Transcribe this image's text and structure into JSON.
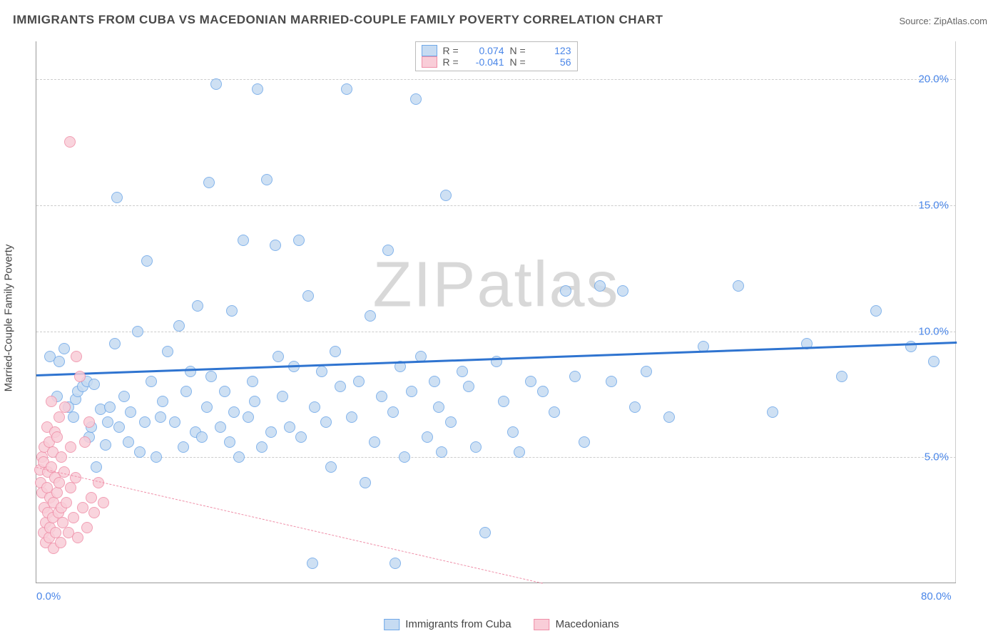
{
  "title": "IMMIGRANTS FROM CUBA VS MACEDONIAN MARRIED-COUPLE FAMILY POVERTY CORRELATION CHART",
  "source": "Source: ZipAtlas.com",
  "watermark_a": "ZIP",
  "watermark_b": "atlas",
  "y_axis_label": "Married-Couple Family Poverty",
  "chart": {
    "type": "scatter",
    "xlim": [
      0,
      80
    ],
    "ylim": [
      0,
      21.5
    ],
    "x_ticks": [
      {
        "v": 0,
        "label": "0.0%"
      },
      {
        "v": 80,
        "label": "80.0%"
      }
    ],
    "y_ticks": [
      {
        "v": 5,
        "label": "5.0%"
      },
      {
        "v": 10,
        "label": "10.0%"
      },
      {
        "v": 15,
        "label": "15.0%"
      },
      {
        "v": 20,
        "label": "20.0%"
      }
    ],
    "grid_color": "#cccccc",
    "background_color": "#ffffff",
    "marker_radius": 8,
    "series": [
      {
        "name": "Immigrants from Cuba",
        "fill": "#c6dbf2",
        "stroke": "#6fa8e8",
        "trend_color": "#2f74d0",
        "trend_dashed": false,
        "trend": {
          "x1": 0,
          "y1": 8.3,
          "x2": 80,
          "y2": 9.6
        },
        "R": "0.074",
        "N": "123",
        "points": [
          [
            1.2,
            9.0
          ],
          [
            1.8,
            7.4
          ],
          [
            2.0,
            8.8
          ],
          [
            2.4,
            9.3
          ],
          [
            2.8,
            7.0
          ],
          [
            3.2,
            6.6
          ],
          [
            3.4,
            7.3
          ],
          [
            3.6,
            7.6
          ],
          [
            4.0,
            7.8
          ],
          [
            4.4,
            8.0
          ],
          [
            4.6,
            5.8
          ],
          [
            4.8,
            6.2
          ],
          [
            5.0,
            7.9
          ],
          [
            5.2,
            4.6
          ],
          [
            5.6,
            6.9
          ],
          [
            6.0,
            5.5
          ],
          [
            6.2,
            6.4
          ],
          [
            6.4,
            7.0
          ],
          [
            6.8,
            9.5
          ],
          [
            7.0,
            15.3
          ],
          [
            7.2,
            6.2
          ],
          [
            7.6,
            7.4
          ],
          [
            8.0,
            5.6
          ],
          [
            8.2,
            6.8
          ],
          [
            8.8,
            10.0
          ],
          [
            9.0,
            5.2
          ],
          [
            9.4,
            6.4
          ],
          [
            9.6,
            12.8
          ],
          [
            10.0,
            8.0
          ],
          [
            10.4,
            5.0
          ],
          [
            10.8,
            6.6
          ],
          [
            11.0,
            7.2
          ],
          [
            11.4,
            9.2
          ],
          [
            12.0,
            6.4
          ],
          [
            12.4,
            10.2
          ],
          [
            12.8,
            5.4
          ],
          [
            13.0,
            7.6
          ],
          [
            13.4,
            8.4
          ],
          [
            13.8,
            6.0
          ],
          [
            14.0,
            11.0
          ],
          [
            14.4,
            5.8
          ],
          [
            14.8,
            7.0
          ],
          [
            15.0,
            15.9
          ],
          [
            15.2,
            8.2
          ],
          [
            15.6,
            19.8
          ],
          [
            16.0,
            6.2
          ],
          [
            16.4,
            7.6
          ],
          [
            16.8,
            5.6
          ],
          [
            17.0,
            10.8
          ],
          [
            17.2,
            6.8
          ],
          [
            17.6,
            5.0
          ],
          [
            18.0,
            13.6
          ],
          [
            18.4,
            6.6
          ],
          [
            18.8,
            8.0
          ],
          [
            19.0,
            7.2
          ],
          [
            19.2,
            19.6
          ],
          [
            19.6,
            5.4
          ],
          [
            20.0,
            16.0
          ],
          [
            20.4,
            6.0
          ],
          [
            20.8,
            13.4
          ],
          [
            21.0,
            9.0
          ],
          [
            21.4,
            7.4
          ],
          [
            22.0,
            6.2
          ],
          [
            22.4,
            8.6
          ],
          [
            22.8,
            13.6
          ],
          [
            23.0,
            5.8
          ],
          [
            23.6,
            11.4
          ],
          [
            24.0,
            0.8
          ],
          [
            24.2,
            7.0
          ],
          [
            24.8,
            8.4
          ],
          [
            25.2,
            6.4
          ],
          [
            25.6,
            4.6
          ],
          [
            26.0,
            9.2
          ],
          [
            26.4,
            7.8
          ],
          [
            27.0,
            19.6
          ],
          [
            27.4,
            6.6
          ],
          [
            28.0,
            8.0
          ],
          [
            28.6,
            4.0
          ],
          [
            29.0,
            10.6
          ],
          [
            29.4,
            5.6
          ],
          [
            30.0,
            7.4
          ],
          [
            30.6,
            13.2
          ],
          [
            31.0,
            6.8
          ],
          [
            31.2,
            0.8
          ],
          [
            31.6,
            8.6
          ],
          [
            32.0,
            5.0
          ],
          [
            32.6,
            7.6
          ],
          [
            33.0,
            19.2
          ],
          [
            33.4,
            9.0
          ],
          [
            34.0,
            5.8
          ],
          [
            34.6,
            8.0
          ],
          [
            35.0,
            7.0
          ],
          [
            35.2,
            5.2
          ],
          [
            35.6,
            15.4
          ],
          [
            36.0,
            6.4
          ],
          [
            37.0,
            8.4
          ],
          [
            37.6,
            7.8
          ],
          [
            38.2,
            5.4
          ],
          [
            39.0,
            2.0
          ],
          [
            40.0,
            8.8
          ],
          [
            40.6,
            7.2
          ],
          [
            41.4,
            6.0
          ],
          [
            42.0,
            5.2
          ],
          [
            43.0,
            8.0
          ],
          [
            44.0,
            7.6
          ],
          [
            45.0,
            6.8
          ],
          [
            46.0,
            11.6
          ],
          [
            46.8,
            8.2
          ],
          [
            47.6,
            5.6
          ],
          [
            49.0,
            11.8
          ],
          [
            50.0,
            8.0
          ],
          [
            51.0,
            11.6
          ],
          [
            52.0,
            7.0
          ],
          [
            53.0,
            8.4
          ],
          [
            55.0,
            6.6
          ],
          [
            58.0,
            9.4
          ],
          [
            61.0,
            11.8
          ],
          [
            64.0,
            6.8
          ],
          [
            67.0,
            9.5
          ],
          [
            70.0,
            8.2
          ],
          [
            73.0,
            10.8
          ],
          [
            76.0,
            9.4
          ],
          [
            78.0,
            8.8
          ]
        ]
      },
      {
        "name": "Macedonians",
        "fill": "#f9cdd8",
        "stroke": "#ef8fa8",
        "trend_color": "#ef8fa8",
        "trend_dashed": true,
        "trend": {
          "x1": 0,
          "y1": 4.6,
          "x2": 44,
          "y2": 0
        },
        "R": "-0.041",
        "N": "56",
        "points": [
          [
            0.3,
            4.5
          ],
          [
            0.4,
            4.0
          ],
          [
            0.5,
            3.6
          ],
          [
            0.5,
            5.0
          ],
          [
            0.6,
            2.0
          ],
          [
            0.6,
            4.8
          ],
          [
            0.7,
            3.0
          ],
          [
            0.7,
            5.4
          ],
          [
            0.8,
            2.4
          ],
          [
            0.8,
            1.6
          ],
          [
            0.9,
            3.8
          ],
          [
            0.9,
            6.2
          ],
          [
            1.0,
            2.8
          ],
          [
            1.0,
            4.4
          ],
          [
            1.1,
            1.8
          ],
          [
            1.1,
            5.6
          ],
          [
            1.2,
            3.4
          ],
          [
            1.2,
            2.2
          ],
          [
            1.3,
            4.6
          ],
          [
            1.3,
            7.2
          ],
          [
            1.4,
            2.6
          ],
          [
            1.4,
            5.2
          ],
          [
            1.5,
            3.2
          ],
          [
            1.5,
            1.4
          ],
          [
            1.6,
            4.2
          ],
          [
            1.6,
            6.0
          ],
          [
            1.7,
            2.0
          ],
          [
            1.8,
            3.6
          ],
          [
            1.8,
            5.8
          ],
          [
            1.9,
            2.8
          ],
          [
            2.0,
            4.0
          ],
          [
            2.0,
            6.6
          ],
          [
            2.1,
            1.6
          ],
          [
            2.2,
            3.0
          ],
          [
            2.2,
            5.0
          ],
          [
            2.3,
            2.4
          ],
          [
            2.4,
            4.4
          ],
          [
            2.5,
            7.0
          ],
          [
            2.6,
            3.2
          ],
          [
            2.8,
            2.0
          ],
          [
            2.9,
            17.5
          ],
          [
            3.0,
            5.4
          ],
          [
            3.0,
            3.8
          ],
          [
            3.2,
            2.6
          ],
          [
            3.4,
            4.2
          ],
          [
            3.5,
            9.0
          ],
          [
            3.6,
            1.8
          ],
          [
            3.8,
            8.2
          ],
          [
            4.0,
            3.0
          ],
          [
            4.2,
            5.6
          ],
          [
            4.4,
            2.2
          ],
          [
            4.6,
            6.4
          ],
          [
            4.8,
            3.4
          ],
          [
            5.0,
            2.8
          ],
          [
            5.4,
            4.0
          ],
          [
            5.8,
            3.2
          ]
        ]
      }
    ]
  },
  "stats_labels": {
    "r": "R =",
    "n": "N ="
  },
  "bottom_legend": [
    "Immigrants from Cuba",
    "Macedonians"
  ]
}
